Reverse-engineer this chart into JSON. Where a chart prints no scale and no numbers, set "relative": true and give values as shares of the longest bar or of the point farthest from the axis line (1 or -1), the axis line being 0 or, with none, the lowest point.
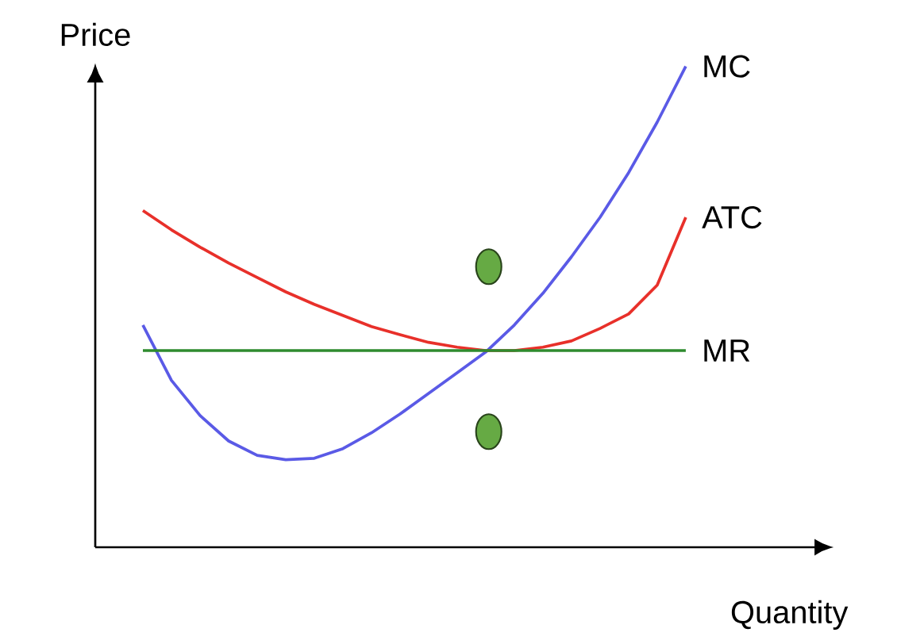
{
  "chart_data": {
    "type": "line",
    "relative": true,
    "xlabel": "Quantity",
    "ylabel": "Price",
    "categories": [
      null,
      null,
      null,
      null,
      null,
      null,
      null,
      null,
      null,
      null,
      null,
      null,
      null,
      null,
      null,
      null,
      null,
      null,
      null,
      null
    ],
    "series": [
      {
        "name": "MC",
        "color": "#5a5ae6",
        "values": [
          0.462,
          0.347,
          0.274,
          0.221,
          0.191,
          0.182,
          0.185,
          0.205,
          0.238,
          0.277,
          0.32,
          0.363,
          0.406,
          0.462,
          0.528,
          0.604,
          0.686,
          0.779,
          0.884,
          1
        ]
      },
      {
        "name": "ATC",
        "color": "#e8302a",
        "values": [
          0.7,
          0.66,
          0.624,
          0.591,
          0.561,
          0.531,
          0.505,
          0.482,
          0.459,
          0.442,
          0.426,
          0.416,
          0.409,
          0.409,
          0.416,
          0.429,
          0.455,
          0.485,
          0.545,
          0.686
        ]
      },
      {
        "name": "MR",
        "color": "#2e8b2e",
        "values": [
          0.409,
          0.409,
          0.409,
          0.409,
          0.409,
          0.409,
          0.409,
          0.409,
          0.409,
          0.409,
          0.409,
          0.409,
          0.409,
          0.409,
          0.409,
          0.409,
          0.409,
          0.409,
          0.409,
          0.409
        ]
      }
    ]
  }
}
